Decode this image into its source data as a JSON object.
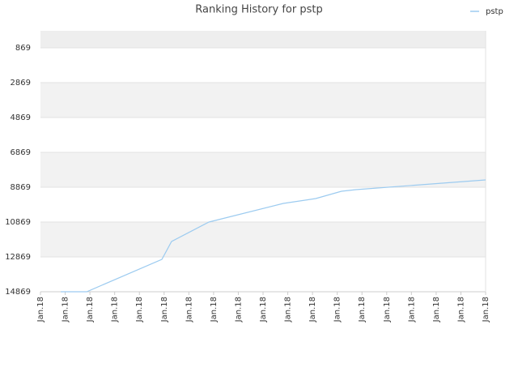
{
  "chart_data": {
    "type": "line",
    "title": "Ranking History for pstp",
    "series": [
      {
        "name": "pstp",
        "color": "#9ccbf0",
        "x": [
          0.82,
          1.87,
          4.91,
          5.3,
          6.81,
          9.82,
          11.13,
          12.17,
          12.76,
          18
        ],
        "values": [
          14869,
          14869,
          13009,
          11985,
          10869,
          9799,
          9520,
          9102,
          9009,
          8450
        ]
      }
    ],
    "xlim": [
      0,
      18
    ],
    "xticks": [
      {
        "value": 0,
        "label": "Jan.18"
      },
      {
        "value": 1,
        "label": "Jan.18"
      },
      {
        "value": 2,
        "label": "Jan.18"
      },
      {
        "value": 3,
        "label": "Jan.18"
      },
      {
        "value": 4,
        "label": "Jan.18"
      },
      {
        "value": 5,
        "label": "Jan.18"
      },
      {
        "value": 6,
        "label": "Jan.18"
      },
      {
        "value": 7,
        "label": "Jan.18"
      },
      {
        "value": 8,
        "label": "Jan.18"
      },
      {
        "value": 9,
        "label": "Jan.18"
      },
      {
        "value": 10,
        "label": "Jan.18"
      },
      {
        "value": 11,
        "label": "Jan.18"
      },
      {
        "value": 12,
        "label": "Jan.18"
      },
      {
        "value": 13,
        "label": "Jan.18"
      },
      {
        "value": 14,
        "label": "Jan.18"
      },
      {
        "value": 15,
        "label": "Jan.18"
      },
      {
        "value": 16,
        "label": "Jan.18"
      },
      {
        "value": 17,
        "label": "Jan.18"
      },
      {
        "value": 18,
        "label": "Jan.18"
      }
    ],
    "ylim": [
      -108,
      14869
    ],
    "y_inverted": true,
    "yticks": [
      869,
      2869,
      4869,
      6869,
      8869,
      10869,
      12869,
      14869
    ],
    "grid": true,
    "legend": "top-right"
  }
}
